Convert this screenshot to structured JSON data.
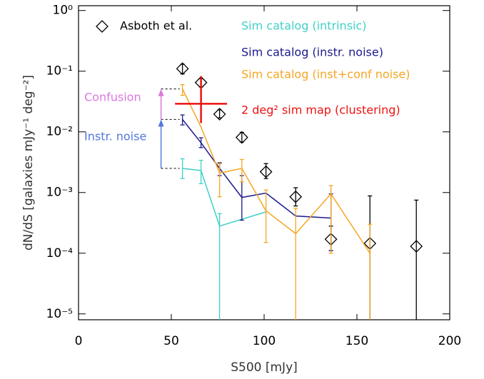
{
  "chart_data": {
    "type": "line",
    "log_y": true,
    "xlabel": "S500 [mJy]",
    "ylabel": "dN/dS [galaxies mJy⁻¹ deg⁻²]",
    "xlim": [
      0,
      200
    ],
    "xticks": [
      0,
      50,
      100,
      150,
      200
    ],
    "ylim": [
      8e-06,
      1.2
    ],
    "yticks": [
      {
        "value": 1,
        "label": "10⁰"
      },
      {
        "value": 0.1,
        "label": "10⁻¹"
      },
      {
        "value": 0.01,
        "label": "10⁻²"
      },
      {
        "value": 0.001,
        "label": "10⁻³"
      },
      {
        "value": 0.0001,
        "label": "10⁻⁴"
      },
      {
        "value": 1e-05,
        "label": "10⁻⁵"
      }
    ],
    "series": [
      {
        "name": "Asboth et al.",
        "color": "#000000",
        "style": "diamond",
        "x": [
          56,
          66,
          76,
          88,
          101,
          117,
          136,
          157,
          182
        ],
        "values": [
          0.11,
          0.065,
          0.0196,
          0.0081,
          0.0022,
          0.00085,
          0.00017,
          0.000145,
          0.00013
        ],
        "err_low": [
          0.09,
          0.055,
          0.017,
          0.0068,
          0.0017,
          0.0006,
          0.00011,
          5e-06,
          5e-06
        ],
        "err_high": [
          0.13,
          0.075,
          0.023,
          0.0098,
          0.003,
          0.0012,
          0.00028,
          0.00088,
          0.00075
        ]
      },
      {
        "name": "Sim catalog (intrinsic)",
        "color": "#40d0c8",
        "style": "line",
        "x": [
          56,
          66,
          76,
          101
        ],
        "values": [
          0.0025,
          0.0023,
          0.00028,
          0.00048
        ],
        "err_low": [
          0.0017,
          0.0014,
          5e-06,
          0.00048
        ],
        "err_high": [
          0.0036,
          0.0034,
          0.00045,
          0.00048
        ]
      },
      {
        "name": "Sim catalog (instr. noise)",
        "color": "#1a1a8c",
        "style": "line",
        "x": [
          56,
          66,
          76,
          88,
          101,
          117,
          136
        ],
        "values": [
          0.016,
          0.0066,
          0.0025,
          0.00083,
          0.00098,
          0.00041,
          0.00038
        ],
        "err_low": [
          0.013,
          0.0055,
          0.0019,
          0.00035,
          0.00098,
          0.00041,
          0.00011
        ],
        "err_high": [
          0.019,
          0.008,
          0.0031,
          0.0019,
          0.00098,
          0.00041,
          0.00095
        ]
      },
      {
        "name": "Sim catalog (inst+conf noise)",
        "color": "#f5a623",
        "style": "line",
        "x": [
          56,
          66,
          76,
          88,
          101,
          117,
          136,
          157
        ],
        "values": [
          0.051,
          0.012,
          0.0021,
          0.0025,
          0.0005,
          0.00021,
          0.00095,
          0.0001
        ],
        "err_low": [
          0.04,
          0.012,
          0.00085,
          0.0015,
          0.00015,
          5e-06,
          0.0001,
          5e-06
        ],
        "err_high": [
          0.06,
          0.012,
          0.003,
          0.0035,
          0.0011,
          0.00055,
          0.0013,
          0.0003
        ]
      },
      {
        "name": "2 deg² sim map (clustering)",
        "color": "#ee1111",
        "style": "cross",
        "x": [
          66
        ],
        "values": [
          0.029
        ],
        "err_low": [
          0.014
        ],
        "err_high": [
          0.083
        ],
        "x_low": [
          52
        ],
        "x_high": [
          80
        ]
      }
    ],
    "annotations": [
      {
        "text": "Confusion",
        "color": "#dd77dd"
      },
      {
        "text": "Instr. noise",
        "color": "#5577dd"
      }
    ]
  }
}
